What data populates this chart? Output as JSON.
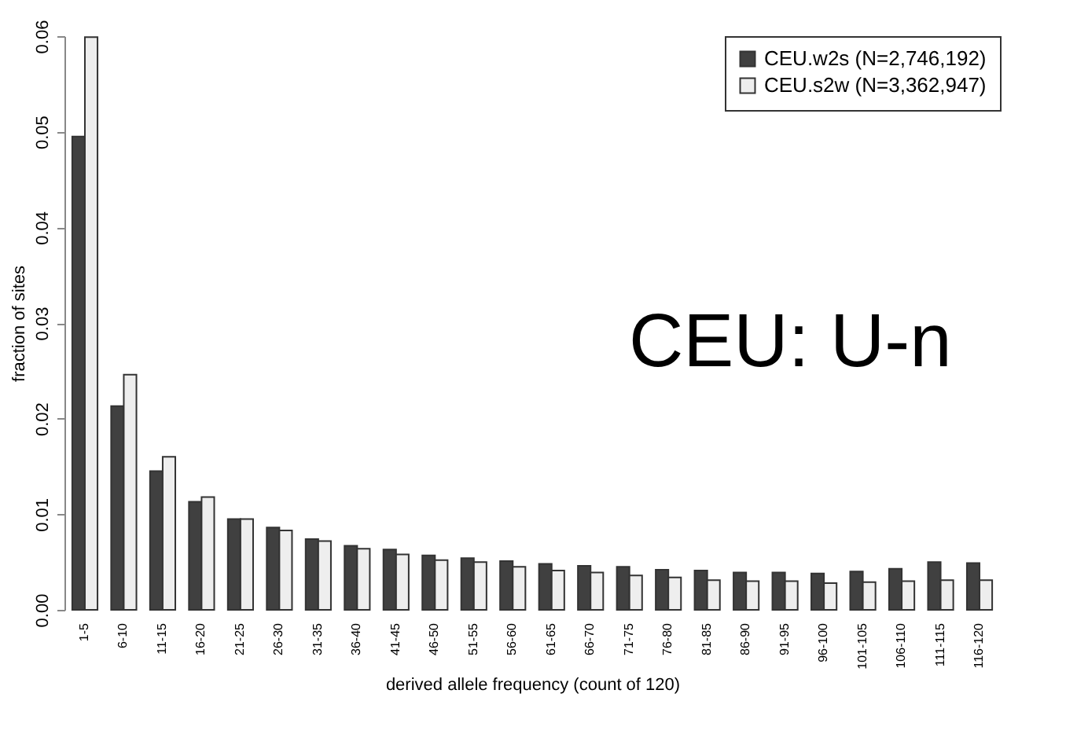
{
  "chart_data": {
    "type": "bar",
    "xlabel": "derived allele frequency (count of 120)",
    "ylabel": "fraction of sites",
    "categories": [
      "1-5",
      "6-10",
      "11-15",
      "16-20",
      "21-25",
      "26-30",
      "31-35",
      "36-40",
      "41-45",
      "46-50",
      "51-55",
      "56-60",
      "61-65",
      "66-70",
      "71-75",
      "76-80",
      "81-85",
      "86-90",
      "91-95",
      "96-100",
      "101-105",
      "106-110",
      "111-115",
      "116-120"
    ],
    "series": [
      {
        "name": "CEU.w2s (N=2,746,192)",
        "color": "#404040",
        "values": [
          0.0495,
          0.0213,
          0.0145,
          0.0113,
          0.0095,
          0.0086,
          0.0074,
          0.0067,
          0.0063,
          0.0057,
          0.0054,
          0.0051,
          0.0048,
          0.0046,
          0.0045,
          0.0042,
          0.0041,
          0.0039,
          0.0039,
          0.0038,
          0.004,
          0.0043,
          0.005,
          0.0049
        ]
      },
      {
        "name": "CEU.s2w (N=3,362,947)",
        "color": "#eeeeee",
        "values": [
          0.0599,
          0.0246,
          0.016,
          0.0118,
          0.0095,
          0.0083,
          0.0072,
          0.0064,
          0.0058,
          0.0052,
          0.005,
          0.0045,
          0.0041,
          0.0039,
          0.0036,
          0.0034,
          0.0031,
          0.003,
          0.003,
          0.0028,
          0.0029,
          0.003,
          0.0031,
          0.0031
        ]
      }
    ],
    "ylim": [
      0,
      0.06
    ],
    "yticks": [
      {
        "value": 0,
        "label": "0.00"
      },
      {
        "value": 0.01,
        "label": "0.01"
      },
      {
        "value": 0.02,
        "label": "0.02"
      },
      {
        "value": 0.03,
        "label": "0.03"
      },
      {
        "value": 0.04,
        "label": "0.04"
      },
      {
        "value": 0.05,
        "label": "0.05"
      },
      {
        "value": 0.06,
        "label": "0.06"
      }
    ],
    "legend": "top right",
    "grid": false,
    "annotations": [
      "CEU: U-n"
    ]
  }
}
